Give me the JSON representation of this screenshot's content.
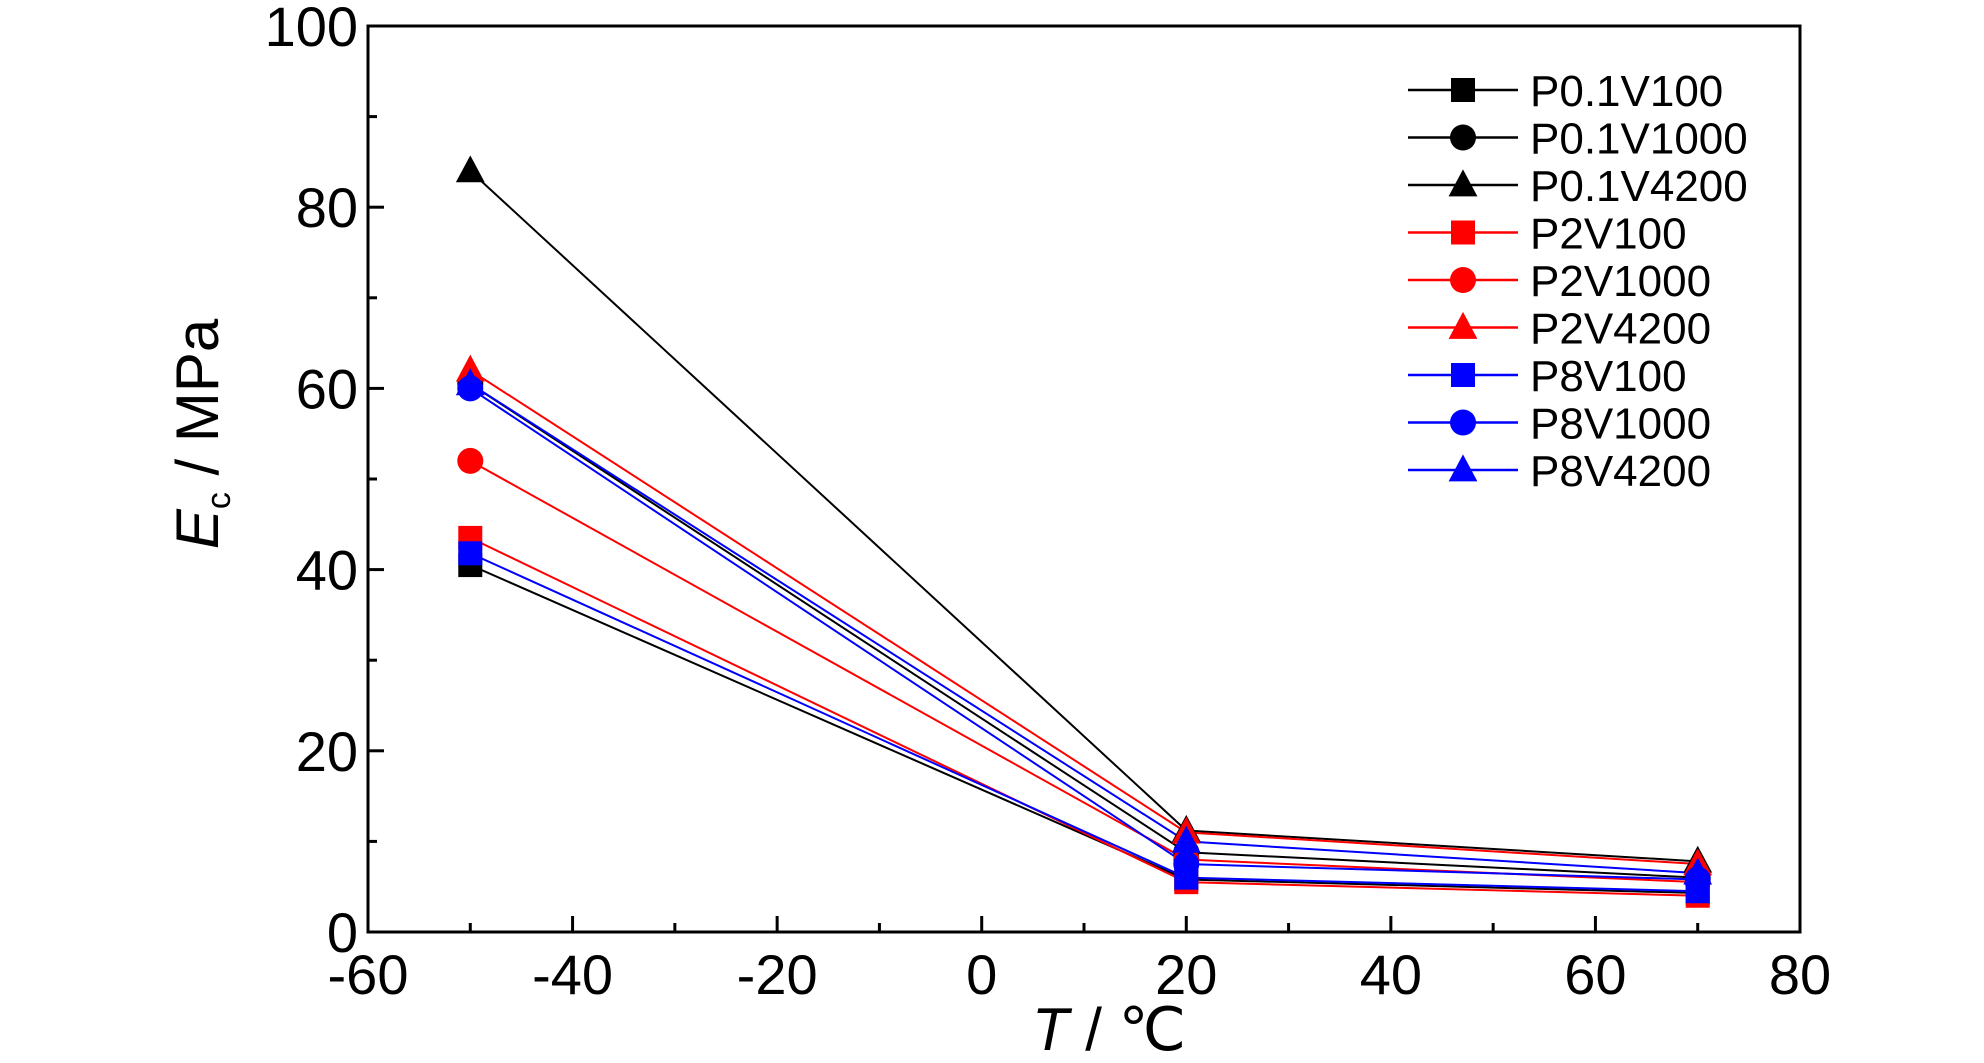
{
  "chart_data": {
    "type": "line",
    "x": [
      -50,
      20,
      70
    ],
    "xlabel": {
      "var": "T",
      "unit": " / ℃"
    },
    "ylabel": {
      "var": "E",
      "sub": "c",
      "unit": " / MPa"
    },
    "xlim": [
      -60,
      80
    ],
    "ylim": [
      0,
      100
    ],
    "xticks": [
      -60,
      -40,
      -20,
      0,
      20,
      40,
      60,
      80
    ],
    "yticks": [
      0,
      20,
      40,
      60,
      80,
      100
    ],
    "grid": false,
    "legend_position": "top-right",
    "series": [
      {
        "name": "P0.1V100",
        "color": "#000000",
        "marker": "square",
        "values": [
          40.5,
          5.8,
          4.3
        ]
      },
      {
        "name": "P0.1V1000",
        "color": "#000000",
        "marker": "circle",
        "values": [
          60.5,
          8.8,
          6.0
        ]
      },
      {
        "name": "P0.1V4200",
        "color": "#000000",
        "marker": "triangle",
        "values": [
          84.0,
          11.2,
          7.8
        ]
      },
      {
        "name": "P2V100",
        "color": "#ff0000",
        "marker": "square",
        "values": [
          43.5,
          5.5,
          4.0
        ]
      },
      {
        "name": "P2V1000",
        "color": "#ff0000",
        "marker": "circle",
        "values": [
          52.0,
          8.0,
          5.5
        ]
      },
      {
        "name": "P2V4200",
        "color": "#ff0000",
        "marker": "triangle",
        "values": [
          62.0,
          11.0,
          7.5
        ]
      },
      {
        "name": "P8V100",
        "color": "#0000ff",
        "marker": "square",
        "values": [
          41.8,
          6.0,
          4.5
        ]
      },
      {
        "name": "P8V1000",
        "color": "#0000ff",
        "marker": "circle",
        "values": [
          60.0,
          7.5,
          5.8
        ]
      },
      {
        "name": "P8V4200",
        "color": "#0000ff",
        "marker": "triangle",
        "values": [
          60.5,
          10.0,
          6.5
        ]
      }
    ]
  }
}
